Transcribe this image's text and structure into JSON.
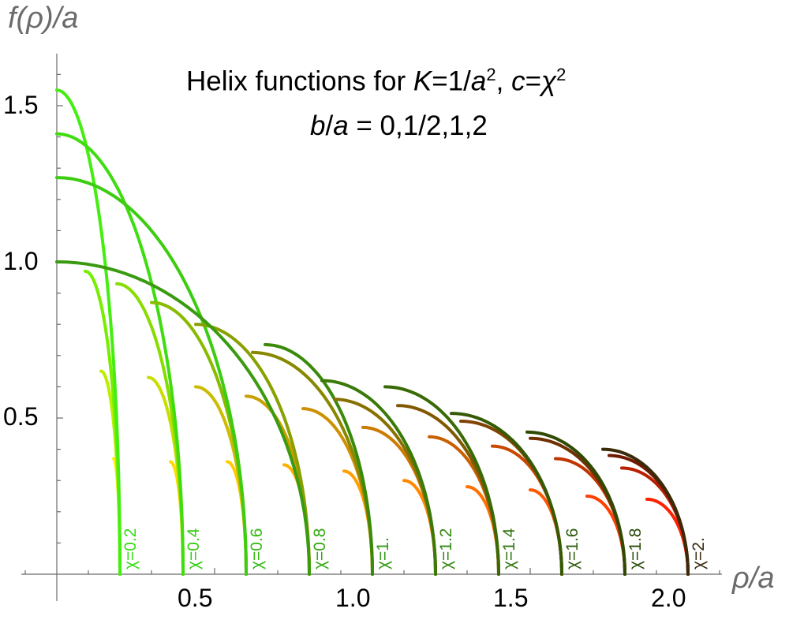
{
  "chart_data": {
    "type": "line",
    "title_line1_pre": "Helix functions for ",
    "title_K": "K",
    "title_eq1": "=1/",
    "title_a": "a",
    "title_sup1": "2",
    "title_mid": ", ",
    "title_c": "c",
    "title_eq2": "=",
    "title_chi": "χ",
    "title_sup2": "2",
    "title_line2_b": "b",
    "title_line2_slash": "/",
    "title_line2_a": "a",
    "title_line2_rest": " = 0,1/2,1,2",
    "xlabel": "ρ/a",
    "ylabel": "f(ρ)/a",
    "xlim": [
      0,
      2.1
    ],
    "ylim": [
      0,
      1.6
    ],
    "xticks": [
      "0.5",
      "1.0",
      "1.5",
      "2.0"
    ],
    "yticks": [
      "0.5",
      "1.0",
      "1.5"
    ],
    "b_over_a_values": [
      0,
      0.5,
      1,
      2
    ],
    "series": [
      {
        "chi": 0.2,
        "label": "χ=0.2",
        "label_color": "#33dd11",
        "starts": [
          [
            0,
            1.55
          ],
          [
            0.09,
            0.97
          ],
          [
            0.14,
            0.65
          ],
          [
            0.18,
            0.37
          ]
        ],
        "colors": [
          "#44ee11",
          "#77ee00",
          "#bbee00",
          "#ffee00"
        ]
      },
      {
        "chi": 0.4,
        "label": "χ=0.4",
        "label_color": "#33cc11",
        "starts": [
          [
            0,
            1.41
          ],
          [
            0.19,
            0.93
          ],
          [
            0.29,
            0.63
          ],
          [
            0.36,
            0.36
          ]
        ],
        "colors": [
          "#3fdd10",
          "#88dd00",
          "#c8dd00",
          "#ffdd00"
        ]
      },
      {
        "chi": 0.6,
        "label": "χ=0.6",
        "label_color": "#33bb11",
        "starts": [
          [
            0,
            1.27
          ],
          [
            0.3,
            0.87
          ],
          [
            0.44,
            0.6
          ],
          [
            0.54,
            0.36
          ]
        ],
        "colors": [
          "#3ccc10",
          "#88bb00",
          "#ccbb00",
          "#ffcc00"
        ]
      },
      {
        "chi": 0.8,
        "label": "χ=0.8",
        "label_color": "#33aa11",
        "starts": [
          [
            0,
            1.0
          ],
          [
            0.44,
            0.8
          ],
          [
            0.6,
            0.57
          ],
          [
            0.72,
            0.35
          ]
        ],
        "colors": [
          "#3a9a10",
          "#88a000",
          "#c8a000",
          "#ffb000"
        ]
      },
      {
        "chi": 1.0,
        "label": "χ=1.",
        "label_color": "#339911",
        "starts": [
          [
            0.66,
            0.735
          ],
          [
            0.62,
            0.71
          ],
          [
            0.78,
            0.53
          ],
          [
            0.91,
            0.33
          ]
        ],
        "colors": [
          "#3a8a0a",
          "#888800",
          "#cc9000",
          "#ffa000"
        ]
      },
      {
        "chi": 1.2,
        "label": "χ=1.2",
        "label_color": "#338811",
        "starts": [
          [
            0.84,
            0.62
          ],
          [
            0.88,
            0.56
          ],
          [
            0.97,
            0.47
          ],
          [
            1.1,
            0.3
          ]
        ],
        "colors": [
          "#3a7a08",
          "#887000",
          "#cc7a00",
          "#ff8800"
        ]
      },
      {
        "chi": 1.4,
        "label": "χ=1.4",
        "label_color": "#337711",
        "starts": [
          [
            1.04,
            0.6
          ],
          [
            1.08,
            0.54
          ],
          [
            1.18,
            0.44
          ],
          [
            1.3,
            0.28
          ]
        ],
        "colors": [
          "#386a06",
          "#805800",
          "#c86000",
          "#ff7000"
        ]
      },
      {
        "chi": 1.6,
        "label": "χ=1.6",
        "label_color": "#2f5c0e",
        "starts": [
          [
            1.25,
            0.515
          ],
          [
            1.28,
            0.49
          ],
          [
            1.38,
            0.41
          ],
          [
            1.5,
            0.27
          ]
        ],
        "colors": [
          "#355a05",
          "#804400",
          "#c84800",
          "#ff5800"
        ]
      },
      {
        "chi": 1.8,
        "label": "χ=1.8",
        "label_color": "#2a4a0a",
        "starts": [
          [
            1.49,
            0.455
          ],
          [
            1.5,
            0.435
          ],
          [
            1.58,
            0.37
          ],
          [
            1.68,
            0.25
          ]
        ],
        "colors": [
          "#304a04",
          "#703000",
          "#c03400",
          "#ff4000"
        ]
      },
      {
        "chi": 2.0,
        "label": "χ=2.",
        "label_color": "#3a2a10",
        "starts": [
          [
            1.73,
            0.4
          ],
          [
            1.75,
            0.38
          ],
          [
            1.79,
            0.34
          ],
          [
            1.87,
            0.24
          ]
        ],
        "colors": [
          "#3a2a08",
          "#701800",
          "#b82000",
          "#ff2000"
        ]
      }
    ]
  }
}
